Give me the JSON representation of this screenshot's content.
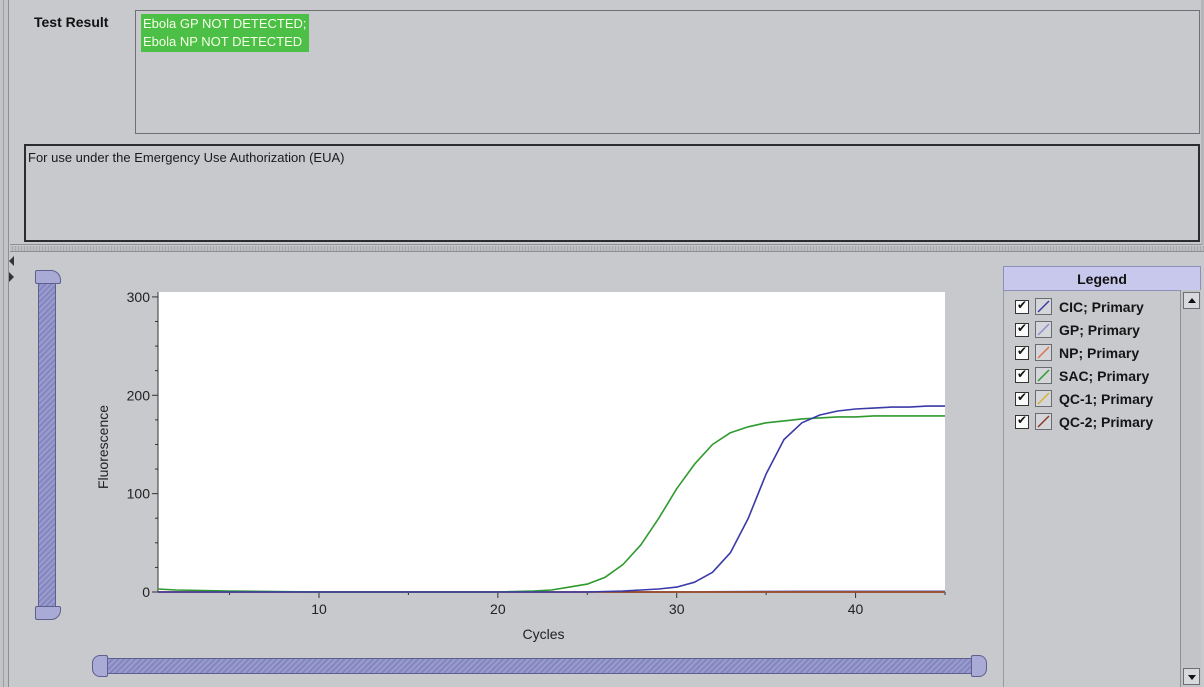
{
  "result": {
    "label": "Test Result",
    "lines": [
      "Ebola GP NOT DETECTED;",
      "Ebola NP NOT DETECTED"
    ],
    "highlight_color": "#4cbf46"
  },
  "eua_note": "For use under the Emergency Use Authorization (EUA)",
  "legend": {
    "title": "Legend",
    "items": [
      {
        "label": "CIC; Primary",
        "color": "#3a3aa8",
        "checked": true
      },
      {
        "label": "GP; Primary",
        "color": "#8f8fd4",
        "checked": true
      },
      {
        "label": "NP; Primary",
        "color": "#e0704a",
        "checked": true
      },
      {
        "label": "SAC; Primary",
        "color": "#2e9a2e",
        "checked": true
      },
      {
        "label": "QC-1; Primary",
        "color": "#d4b030",
        "checked": true
      },
      {
        "label": "QC-2; Primary",
        "color": "#8a3a2a",
        "checked": true
      }
    ]
  },
  "icons": {
    "splitter_left": "arrow-left-icon",
    "splitter_right": "arrow-right-icon",
    "scroll_up": "scroll-up-icon",
    "scroll_down": "scroll-down-icon",
    "checkbox": "checkmark-icon"
  },
  "chart_data": {
    "type": "line",
    "xlabel": "Cycles",
    "ylabel": "Fluorescence",
    "xlim": [
      1,
      45
    ],
    "ylim": [
      0,
      305
    ],
    "xticks": [
      10,
      20,
      30,
      40
    ],
    "yticks": [
      0,
      100,
      200,
      300
    ],
    "grid": false,
    "series": [
      {
        "name": "CIC; Primary",
        "color": "#3a3aa8",
        "x": [
          1,
          5,
          10,
          15,
          20,
          25,
          27,
          28,
          29,
          30,
          31,
          32,
          33,
          34,
          35,
          36,
          37,
          38,
          39,
          40,
          41,
          42,
          43,
          44,
          45
        ],
        "y": [
          0,
          0,
          0,
          0,
          0,
          0,
          1,
          2,
          3,
          5,
          10,
          20,
          40,
          75,
          120,
          155,
          172,
          180,
          184,
          186,
          187,
          188,
          188,
          189,
          189
        ]
      },
      {
        "name": "GP; Primary",
        "color": "#8f8fd4",
        "x": [
          1,
          10,
          20,
          30,
          37,
          40,
          45
        ],
        "y": [
          0,
          0,
          0,
          0,
          1,
          1,
          1
        ]
      },
      {
        "name": "NP; Primary",
        "color": "#e0704a",
        "x": [
          1,
          10,
          20,
          30,
          40,
          45
        ],
        "y": [
          0,
          0,
          0,
          0,
          0,
          0
        ]
      },
      {
        "name": "SAC; Primary",
        "color": "#2e9a2e",
        "x": [
          1,
          2,
          5,
          10,
          15,
          20,
          22,
          23,
          24,
          25,
          26,
          27,
          28,
          29,
          30,
          31,
          32,
          33,
          34,
          35,
          36,
          37,
          38,
          39,
          40,
          41,
          42,
          43,
          44,
          45
        ],
        "y": [
          3,
          2,
          1,
          0,
          0,
          0,
          1,
          2,
          5,
          8,
          15,
          28,
          48,
          75,
          105,
          130,
          150,
          162,
          168,
          172,
          174,
          176,
          177,
          178,
          178,
          179,
          179,
          179,
          179,
          179
        ]
      },
      {
        "name": "QC-1; Primary",
        "color": "#d4b030",
        "x": [
          1,
          10,
          20,
          30,
          40,
          45
        ],
        "y": [
          0,
          0,
          0,
          0,
          0,
          0
        ]
      },
      {
        "name": "QC-2; Primary",
        "color": "#8a3a2a",
        "x": [
          1,
          10,
          20,
          30,
          40,
          45
        ],
        "y": [
          0,
          0,
          0,
          0,
          0,
          0
        ]
      }
    ]
  }
}
